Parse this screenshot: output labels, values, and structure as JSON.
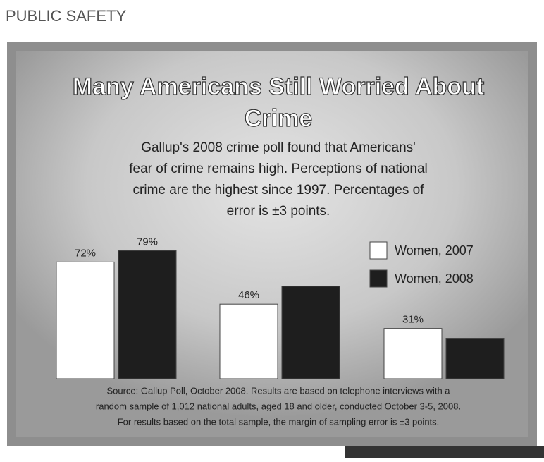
{
  "header": {
    "section": "PUBLIC SAFETY"
  },
  "chart_data": {
    "type": "bar",
    "title": "Many Americans Still Worried About",
    "title_line2": "Crime",
    "subtitle": [
      "Gallup's 2008 crime poll found that Americans'",
      "fear of crime remains high. Perceptions of national",
      "crime are the highest since 1997. Percentages of",
      "error is ±3 points."
    ],
    "categories": [
      null,
      null,
      null
    ],
    "series": [
      {
        "name": "Women, 2007",
        "color": "#ffffff",
        "values": [
          72,
          46,
          31
        ],
        "value_labels": [
          "72%",
          "46%",
          "31%"
        ]
      },
      {
        "name": "Women, 2008",
        "color": "#1e1e1e",
        "values": [
          79,
          57,
          25
        ],
        "value_labels": [
          "79%",
          null,
          null
        ]
      }
    ],
    "ylim": [
      0,
      80
    ],
    "footnote": [
      "Source: Gallup Poll, October 2008. Results are based on telephone interviews with a",
      "random sample of 1,012 national adults, aged 18 and older, conducted October 3-5, 2008.",
      "For results based on the total sample, the margin of sampling error is ±3 points."
    ]
  }
}
